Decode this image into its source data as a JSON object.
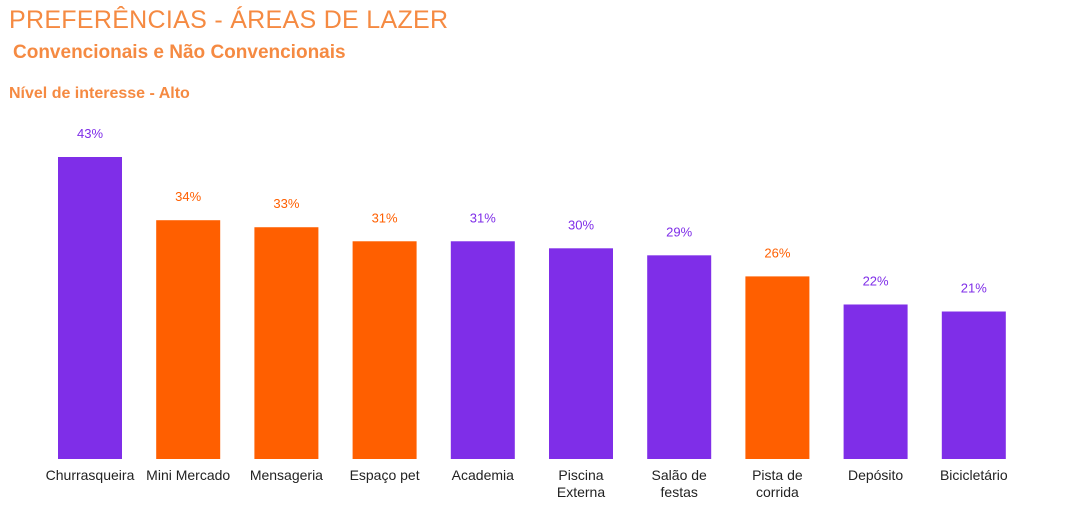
{
  "header": {
    "title": "PREFERÊNCIAS - ÁREAS DE LAZER",
    "subtitle": "Convencionais e Não Convencionais",
    "section": "Nível de interesse - Alto"
  },
  "colors": {
    "convencional": "#7f2ee8",
    "nao_convencional": "#ff5f00"
  },
  "chart_data": {
    "type": "bar",
    "title": "",
    "xlabel": "",
    "ylabel": "",
    "ylim": [
      0,
      43
    ],
    "grid": false,
    "categories": [
      [
        "Churrasqueira"
      ],
      [
        "Mini Mercado"
      ],
      [
        "Mensageria"
      ],
      [
        "Espaço pet"
      ],
      [
        "Academia"
      ],
      [
        "Piscina",
        "Externa"
      ],
      [
        "Salão de",
        "festas"
      ],
      [
        "Pista de",
        "corrida"
      ],
      [
        "Depósito"
      ],
      [
        "Bicicletário"
      ]
    ],
    "values": [
      43,
      34,
      33,
      31,
      31,
      30,
      29,
      26,
      22,
      21
    ],
    "value_labels": [
      "43%",
      "34%",
      "33%",
      "31%",
      "31%",
      "30%",
      "29%",
      "26%",
      "22%",
      "21%"
    ],
    "bar_colors": [
      "#7f2ee8",
      "#ff5f00",
      "#ff5f00",
      "#ff5f00",
      "#7f2ee8",
      "#7f2ee8",
      "#7f2ee8",
      "#ff5f00",
      "#7f2ee8",
      "#7f2ee8"
    ]
  }
}
